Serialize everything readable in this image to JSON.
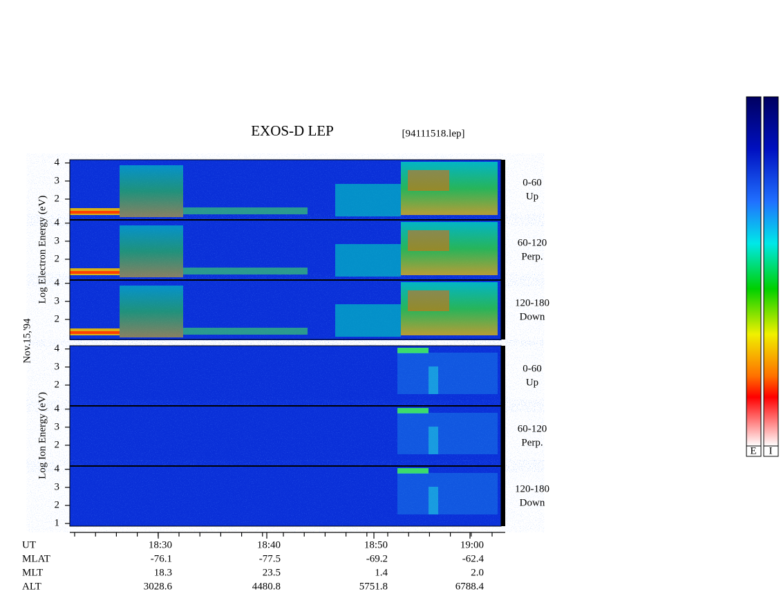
{
  "title": "EXOS-D LEP",
  "file_name": "[94111518.lep]",
  "electron_axis_label": "Log Electron Energy (eV)",
  "date_label": "Nov.15,'94",
  "ion_axis_label": "Log Ion Energy (eV)",
  "ylim": [
    0.85,
    4.18
  ],
  "panels": [
    {
      "angle": "0-60",
      "direction": "Up",
      "yticks": [
        2,
        3,
        4
      ]
    },
    {
      "angle": "60-120",
      "direction": "Perp.",
      "yticks": [
        2,
        3,
        4
      ]
    },
    {
      "angle": "120-180",
      "direction": "Down",
      "yticks": [
        2,
        3,
        4
      ]
    },
    {
      "angle": "0-60",
      "direction": "Up",
      "yticks": [
        2,
        3,
        4
      ]
    },
    {
      "angle": "60-120",
      "direction": "Perp.",
      "yticks": [
        2,
        3,
        4
      ]
    },
    {
      "angle": "120-180",
      "direction": "Down",
      "yticks": [
        1,
        2,
        3,
        4
      ]
    }
  ],
  "ephemeris": [
    {
      "label": "UT",
      "values": [
        "18:30",
        "18:40",
        "18:50",
        "19:00"
      ]
    },
    {
      "label": "MLAT",
      "values": [
        "-76.1",
        "-77.5",
        "-69.2",
        "-62.4"
      ]
    },
    {
      "label": "MLT",
      "values": [
        "18.3",
        "23.5",
        "1.4",
        "2.0"
      ]
    },
    {
      "label": "ALT",
      "values": [
        "3028.6",
        "4480.8",
        "5751.8",
        "6788.4"
      ]
    }
  ],
  "colorbar_labels": [
    "E",
    "I"
  ]
}
